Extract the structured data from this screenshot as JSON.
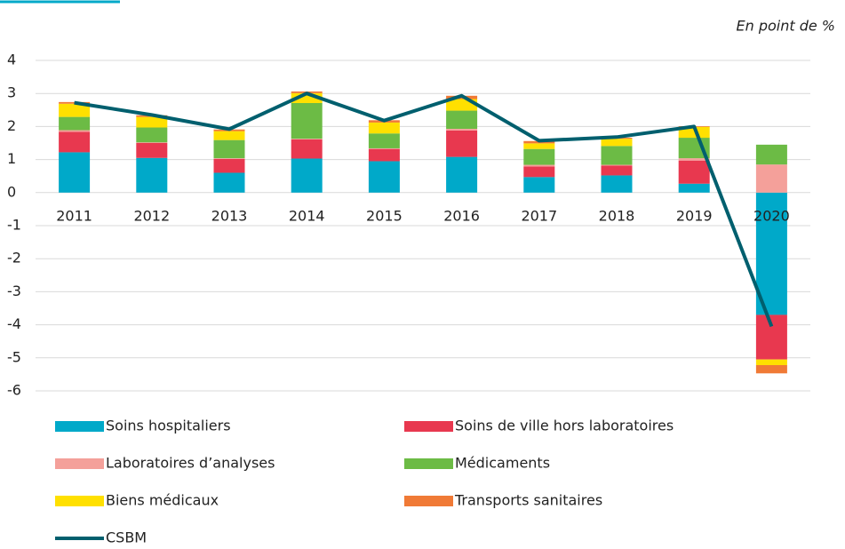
{
  "chart_data": {
    "type": "stacked-bar-line",
    "subtitle": "En point de %",
    "categories": [
      "2011",
      "2012",
      "2013",
      "2014",
      "2015",
      "2016",
      "2017",
      "2018",
      "2019",
      "2020"
    ],
    "series": [
      {
        "name": "Soins hospitaliers",
        "color": "#00a9c9",
        "values": [
          1.22,
          1.05,
          0.6,
          1.03,
          0.95,
          1.08,
          0.47,
          0.52,
          0.27,
          -3.7
        ]
      },
      {
        "name": "Soins de ville hors laboratoires",
        "color": "#e8384f",
        "values": [
          0.62,
          0.45,
          0.42,
          0.58,
          0.37,
          0.8,
          0.32,
          0.3,
          0.7,
          -1.35
        ]
      },
      {
        "name": "Laboratoires d’analyses",
        "color": "#f4a09a",
        "values": [
          0.05,
          0.02,
          0.02,
          0.02,
          0.02,
          0.05,
          0.05,
          0.02,
          0.07,
          0.85
        ]
      },
      {
        "name": "Médicaments",
        "color": "#6cbb45",
        "values": [
          0.4,
          0.45,
          0.55,
          1.08,
          0.45,
          0.55,
          0.48,
          0.57,
          0.62,
          0.6
        ]
      },
      {
        "name": "Biens médicaux",
        "color": "#ffe000",
        "values": [
          0.4,
          0.32,
          0.27,
          0.3,
          0.33,
          0.35,
          0.17,
          0.22,
          0.33,
          -0.17
        ]
      },
      {
        "name": "Transports sanitaires",
        "color": "#f07a36",
        "values": [
          0.05,
          0.05,
          0.05,
          0.05,
          0.07,
          0.1,
          0.07,
          0.03,
          0.02,
          -0.25
        ]
      },
      {
        "name": "CSBM",
        "color": "#005f6e",
        "type": "line",
        "values": [
          2.72,
          2.35,
          1.92,
          3.0,
          2.18,
          2.93,
          1.57,
          1.68,
          2.0,
          -4.05
        ]
      }
    ],
    "ylim": [
      -6,
      4
    ],
    "yticks": [
      -6,
      -5,
      -4,
      -3,
      -2,
      -1,
      0,
      1,
      2,
      3,
      4
    ],
    "grid": true
  }
}
